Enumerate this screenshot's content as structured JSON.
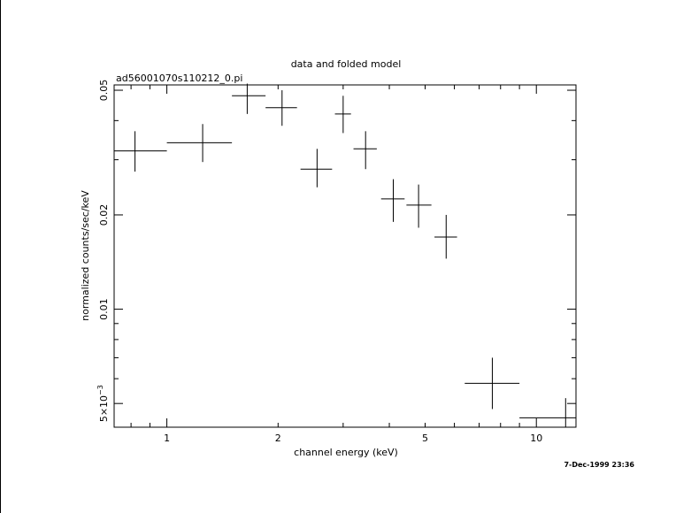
{
  "chart_data": {
    "type": "scatter",
    "title": "data and folded model",
    "subtitle": "ad56001070s110212_0.pi",
    "xlabel": "channel energy (keV)",
    "ylabel": "normalized counts/sec/keV",
    "timestamp": "7-Dec-1999 23:36",
    "x_scale": "log",
    "y_scale": "log",
    "xlim": [
      0.72,
      12.8
    ],
    "ylim": [
      0.0042,
      0.052
    ],
    "x_ticks": [
      {
        "value": 1,
        "label": "1"
      },
      {
        "value": 2,
        "label": "2"
      },
      {
        "value": 5,
        "label": "5"
      },
      {
        "value": 10,
        "label": "10"
      }
    ],
    "y_ticks": [
      {
        "value": 0.005,
        "label": "5×10",
        "sup": "−3"
      },
      {
        "value": 0.01,
        "label": "0.01",
        "sup": ""
      },
      {
        "value": 0.02,
        "label": "0.02",
        "sup": ""
      },
      {
        "value": 0.05,
        "label": "0.05",
        "sup": ""
      }
    ],
    "points": [
      {
        "x": 0.82,
        "x_lo": 0.72,
        "x_hi": 1.0,
        "y": 0.032,
        "y_lo": 0.0275,
        "y_hi": 0.037
      },
      {
        "x": 1.25,
        "x_lo": 1.0,
        "x_hi": 1.5,
        "y": 0.034,
        "y_lo": 0.0295,
        "y_hi": 0.039
      },
      {
        "x": 1.65,
        "x_lo": 1.5,
        "x_hi": 1.85,
        "y": 0.048,
        "y_lo": 0.042,
        "y_hi": 0.0525
      },
      {
        "x": 2.05,
        "x_lo": 1.85,
        "x_hi": 2.25,
        "y": 0.044,
        "y_lo": 0.0385,
        "y_hi": 0.05
      },
      {
        "x": 2.55,
        "x_lo": 2.3,
        "x_hi": 2.8,
        "y": 0.028,
        "y_lo": 0.0245,
        "y_hi": 0.0325
      },
      {
        "x": 3.0,
        "x_lo": 2.85,
        "x_hi": 3.15,
        "y": 0.042,
        "y_lo": 0.0365,
        "y_hi": 0.048
      },
      {
        "x": 3.45,
        "x_lo": 3.2,
        "x_hi": 3.7,
        "y": 0.0325,
        "y_lo": 0.028,
        "y_hi": 0.037
      },
      {
        "x": 4.1,
        "x_lo": 3.8,
        "x_hi": 4.4,
        "y": 0.0225,
        "y_lo": 0.019,
        "y_hi": 0.026
      },
      {
        "x": 4.8,
        "x_lo": 4.45,
        "x_hi": 5.2,
        "y": 0.0215,
        "y_lo": 0.0182,
        "y_hi": 0.025
      },
      {
        "x": 5.7,
        "x_lo": 5.3,
        "x_hi": 6.1,
        "y": 0.017,
        "y_lo": 0.0145,
        "y_hi": 0.02
      },
      {
        "x": 7.6,
        "x_lo": 6.4,
        "x_hi": 9.0,
        "y": 0.0058,
        "y_lo": 0.0048,
        "y_hi": 0.007
      },
      {
        "x": 12.0,
        "x_lo": 9.0,
        "x_hi": 12.8,
        "y": 0.0045,
        "y_lo": 0.0042,
        "y_hi": 0.0052
      }
    ],
    "grid": false,
    "legend": "none"
  }
}
